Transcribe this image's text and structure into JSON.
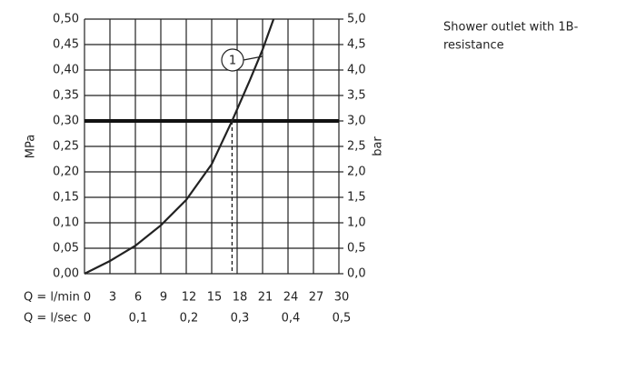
{
  "chart_data": {
    "type": "line",
    "y_label": "MPa",
    "y2_label": "bar",
    "x_label": "Q = l/min",
    "x2_label": "Q = l/sec",
    "annotation": "1",
    "note": [
      "Shower outlet with 1B-",
      "resistance"
    ],
    "x": [
      0,
      3,
      6,
      9,
      12,
      15,
      17.4,
      19.5,
      21,
      22.3
    ],
    "values": [
      0,
      0.025,
      0.055,
      0.095,
      0.145,
      0.215,
      0.3,
      0.38,
      0.44,
      0.5
    ],
    "color": "#222222",
    "xlim": [
      0,
      30
    ],
    "xticks": [
      0,
      3,
      6,
      9,
      12,
      15,
      18,
      21,
      24,
      27,
      30
    ],
    "x2lim": [
      0,
      0.5
    ],
    "x2ticks": [
      0,
      {
        "value": 0.1,
        "label": "0,1"
      },
      {
        "value": 0.2,
        "label": "0,2"
      },
      {
        "value": 0.3,
        "label": "0,3"
      },
      {
        "value": 0.4,
        "label": "0,4"
      },
      {
        "value": 0.5,
        "label": "0,5"
      }
    ],
    "ylim": [
      0,
      0.5
    ],
    "yticks": [
      {
        "value": 0,
        "label": "0,00"
      },
      {
        "value": 0.05,
        "label": "0,05"
      },
      {
        "value": 0.1,
        "label": "0,10"
      },
      {
        "value": 0.15,
        "label": "0,15"
      },
      {
        "value": 0.2,
        "label": "0,20"
      },
      {
        "value": 0.25,
        "label": "0,25"
      },
      {
        "value": 0.3,
        "label": "0,30"
      },
      {
        "value": 0.35,
        "label": "0,35"
      },
      {
        "value": 0.4,
        "label": "0,40"
      },
      {
        "value": 0.45,
        "label": "0,45"
      },
      {
        "value": 0.5,
        "label": "0,50"
      }
    ],
    "y2lim": [
      0,
      5
    ],
    "y2ticks": [
      {
        "value": 0,
        "label": "0,0"
      },
      {
        "value": 0.5,
        "label": "0,5"
      },
      {
        "value": 1,
        "label": "1,0"
      },
      {
        "value": 1.5,
        "label": "1,5"
      },
      {
        "value": 2,
        "label": "2,0"
      },
      {
        "value": 2.5,
        "label": "2,5"
      },
      {
        "value": 3,
        "label": "3,0"
      },
      {
        "value": 3.5,
        "label": "3,5"
      },
      {
        "value": 4,
        "label": "4,0"
      },
      {
        "value": 4.5,
        "label": "4,5"
      },
      {
        "value": 5,
        "label": "5,0"
      }
    ],
    "reference_y": 0.3,
    "reference_x": 17.4,
    "grid": true
  }
}
